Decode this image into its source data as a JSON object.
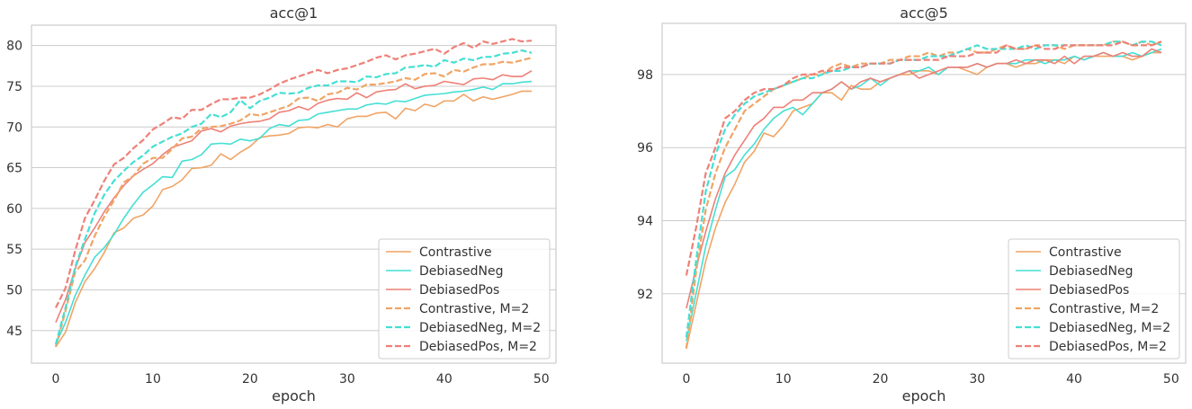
{
  "chart_data": [
    {
      "type": "line",
      "title": "acc@1",
      "xlabel": "epoch",
      "ylabel": "",
      "xlim": [
        -2.5,
        51.5
      ],
      "ylim": [
        41,
        82.5
      ],
      "xticks": [
        0,
        10,
        20,
        30,
        40,
        50
      ],
      "yticks": [
        45,
        50,
        55,
        60,
        65,
        70,
        75,
        80
      ],
      "grid": "horizontal",
      "legend": "lower-right",
      "series": [
        {
          "name": "Contrastive",
          "color": "#f0a465",
          "dash": false,
          "values": [
            43.0,
            44.8,
            48.4,
            51.0,
            52.6,
            54.6,
            57.0,
            57.6,
            58.8,
            59.2,
            60.3,
            62.3,
            62.7,
            63.5,
            64.9,
            65.0,
            65.3,
            66.7,
            66.0,
            66.9,
            67.6,
            68.7,
            68.9,
            69.0,
            69.2,
            69.9,
            70.0,
            69.9,
            70.3,
            70.0,
            71.0,
            71.3,
            71.3,
            71.7,
            71.8,
            71.0,
            72.3,
            72.0,
            72.8,
            72.5,
            73.2,
            73.2,
            74.0,
            73.2,
            73.7,
            73.4,
            73.7,
            74.0,
            74.4,
            74.4
          ]
        },
        {
          "name": "DebiasedNeg",
          "color": "#45dfd3",
          "dash": false,
          "values": [
            43.3,
            46.0,
            49.3,
            51.8,
            54.0,
            55.2,
            56.8,
            58.8,
            60.5,
            62.0,
            62.9,
            63.9,
            63.8,
            65.8,
            66.0,
            66.6,
            67.9,
            68.0,
            67.9,
            68.5,
            68.3,
            68.6,
            69.8,
            70.3,
            70.1,
            70.8,
            70.9,
            71.6,
            71.8,
            72.0,
            72.2,
            72.2,
            72.7,
            72.9,
            72.8,
            73.2,
            73.1,
            73.5,
            73.9,
            74.0,
            74.1,
            74.3,
            74.4,
            74.6,
            74.9,
            74.6,
            75.3,
            75.3,
            75.5,
            75.6
          ]
        },
        {
          "name": "DebiasedPos",
          "color": "#ee8077",
          "dash": false,
          "values": [
            46.0,
            48.8,
            52.6,
            55.8,
            57.6,
            59.6,
            61.3,
            62.8,
            64.0,
            64.8,
            65.5,
            66.6,
            67.5,
            67.9,
            68.3,
            69.5,
            69.8,
            69.4,
            70.1,
            70.4,
            70.6,
            70.7,
            71.0,
            71.8,
            72.0,
            72.5,
            72.1,
            72.9,
            73.3,
            73.5,
            73.4,
            74.2,
            73.6,
            74.3,
            74.5,
            74.6,
            75.3,
            74.7,
            75.0,
            75.1,
            75.6,
            75.4,
            75.2,
            75.9,
            76.0,
            75.8,
            76.4,
            76.2,
            76.2,
            76.9
          ]
        },
        {
          "name": "Contrastive, M=2",
          "color": "#f0a465",
          "dash": true,
          "values": [
            43.0,
            47.4,
            52.2,
            53.6,
            56.6,
            59.0,
            61.0,
            63.2,
            64.0,
            65.5,
            66.2,
            66.2,
            67.3,
            68.6,
            68.8,
            69.8,
            70.0,
            70.1,
            70.4,
            70.8,
            71.6,
            71.4,
            71.8,
            72.2,
            72.6,
            73.5,
            73.6,
            73.2,
            74.0,
            74.2,
            74.8,
            74.6,
            75.2,
            75.2,
            75.4,
            75.6,
            76.0,
            75.8,
            76.5,
            76.6,
            76.2,
            77.0,
            76.8,
            77.3,
            77.7,
            77.7,
            78.0,
            77.9,
            78.2,
            78.5
          ]
        },
        {
          "name": "DebiasedNeg, M=2",
          "color": "#45dfd3",
          "dash": true,
          "values": [
            43.3,
            47.8,
            52.8,
            56.2,
            59.4,
            61.7,
            63.4,
            64.6,
            65.7,
            66.5,
            67.6,
            68.2,
            68.8,
            69.2,
            70.0,
            70.4,
            71.6,
            71.2,
            71.8,
            73.3,
            72.3,
            73.2,
            73.6,
            74.2,
            74.1,
            74.2,
            74.8,
            75.1,
            75.1,
            75.6,
            75.6,
            75.5,
            76.2,
            76.1,
            76.5,
            76.6,
            77.3,
            77.4,
            77.6,
            77.4,
            78.2,
            77.9,
            78.4,
            78.2,
            78.6,
            78.6,
            79.0,
            79.1,
            79.4,
            79.1
          ]
        },
        {
          "name": "DebiasedPos, M=2",
          "color": "#ee8077",
          "dash": true,
          "values": [
            47.8,
            50.2,
            54.8,
            58.8,
            61.0,
            63.4,
            65.4,
            66.2,
            67.4,
            68.4,
            69.7,
            70.4,
            71.2,
            71.0,
            72.1,
            72.1,
            72.8,
            73.4,
            73.4,
            73.6,
            73.6,
            74.0,
            74.6,
            75.3,
            75.8,
            76.2,
            76.6,
            77.0,
            76.6,
            77.0,
            77.2,
            77.6,
            78.0,
            78.5,
            78.8,
            78.3,
            78.8,
            79.0,
            79.3,
            79.6,
            79.0,
            79.8,
            80.3,
            79.7,
            80.5,
            80.2,
            80.5,
            80.8,
            80.5,
            80.6
          ]
        }
      ]
    },
    {
      "type": "line",
      "title": "acc@5",
      "xlabel": "epoch",
      "ylabel": "",
      "xlim": [
        -2.5,
        51.5
      ],
      "ylim": [
        90.1,
        99.4
      ],
      "xticks": [
        0,
        10,
        20,
        30,
        40,
        50
      ],
      "yticks": [
        92,
        94,
        96,
        98
      ],
      "grid": "horizontal",
      "legend": "lower-right",
      "series": [
        {
          "name": "Contrastive",
          "color": "#f0a465",
          "dash": false,
          "values": [
            90.5,
            91.7,
            92.9,
            93.8,
            94.5,
            95.0,
            95.6,
            95.9,
            96.4,
            96.3,
            96.6,
            97.0,
            97.1,
            97.2,
            97.5,
            97.5,
            97.3,
            97.7,
            97.6,
            97.6,
            97.8,
            97.9,
            98.0,
            98.0,
            98.1,
            98.1,
            98.0,
            98.2,
            98.2,
            98.1,
            98.0,
            98.2,
            98.3,
            98.3,
            98.2,
            98.3,
            98.3,
            98.4,
            98.4,
            98.3,
            98.5,
            98.4,
            98.5,
            98.5,
            98.5,
            98.5,
            98.4,
            98.5,
            98.6,
            98.6
          ]
        },
        {
          "name": "DebiasedNeg",
          "color": "#45dfd3",
          "dash": false,
          "values": [
            90.7,
            92.0,
            93.3,
            94.3,
            95.2,
            95.4,
            95.8,
            96.1,
            96.5,
            96.8,
            97.0,
            97.1,
            96.9,
            97.2,
            97.5,
            97.6,
            97.8,
            97.6,
            97.7,
            97.9,
            97.7,
            97.9,
            98.0,
            98.1,
            98.1,
            98.2,
            98.0,
            98.2,
            98.2,
            98.2,
            98.3,
            98.2,
            98.3,
            98.3,
            98.3,
            98.4,
            98.4,
            98.3,
            98.4,
            98.4,
            98.5,
            98.4,
            98.5,
            98.6,
            98.5,
            98.5,
            98.6,
            98.5,
            98.6,
            98.7
          ]
        },
        {
          "name": "DebiasedPos",
          "color": "#ee8077",
          "dash": false,
          "values": [
            91.6,
            92.7,
            93.7,
            94.6,
            95.3,
            95.8,
            96.2,
            96.6,
            96.8,
            97.1,
            97.1,
            97.3,
            97.3,
            97.5,
            97.5,
            97.6,
            97.8,
            97.6,
            97.8,
            97.9,
            97.8,
            97.9,
            98.0,
            98.1,
            97.9,
            98.0,
            98.1,
            98.2,
            98.2,
            98.2,
            98.3,
            98.2,
            98.3,
            98.3,
            98.4,
            98.3,
            98.4,
            98.4,
            98.3,
            98.5,
            98.3,
            98.5,
            98.5,
            98.6,
            98.5,
            98.6,
            98.5,
            98.5,
            98.7,
            98.6
          ]
        },
        {
          "name": "Contrastive, M=2",
          "color": "#f0a465",
          "dash": true,
          "values": [
            90.5,
            92.6,
            94.3,
            95.3,
            96.0,
            96.5,
            97.0,
            97.2,
            97.4,
            97.6,
            97.7,
            97.8,
            97.9,
            98.0,
            98.0,
            98.2,
            98.3,
            98.2,
            98.3,
            98.3,
            98.3,
            98.4,
            98.4,
            98.5,
            98.5,
            98.6,
            98.5,
            98.6,
            98.6,
            98.7,
            98.6,
            98.6,
            98.7,
            98.8,
            98.7,
            98.7,
            98.8,
            98.8,
            98.8,
            98.7,
            98.8,
            98.8,
            98.8,
            98.8,
            98.9,
            98.9,
            98.8,
            98.9,
            98.8,
            98.9
          ]
        },
        {
          "name": "DebiasedNeg, M=2",
          "color": "#45dfd3",
          "dash": true,
          "values": [
            90.8,
            92.9,
            94.8,
            95.8,
            96.5,
            96.9,
            97.2,
            97.4,
            97.5,
            97.6,
            97.7,
            97.8,
            97.9,
            97.9,
            98.0,
            98.1,
            98.1,
            98.2,
            98.2,
            98.3,
            98.3,
            98.3,
            98.4,
            98.4,
            98.4,
            98.5,
            98.5,
            98.5,
            98.6,
            98.7,
            98.8,
            98.7,
            98.7,
            98.7,
            98.7,
            98.8,
            98.7,
            98.8,
            98.8,
            98.8,
            98.8,
            98.8,
            98.8,
            98.8,
            98.9,
            98.9,
            98.8,
            98.9,
            98.9,
            98.8
          ]
        },
        {
          "name": "DebiasedPos, M=2",
          "color": "#ee8077",
          "dash": true,
          "values": [
            92.5,
            93.8,
            95.3,
            96.0,
            96.8,
            97.0,
            97.3,
            97.5,
            97.6,
            97.6,
            97.7,
            97.9,
            98.0,
            98.0,
            98.1,
            98.1,
            98.2,
            98.2,
            98.2,
            98.3,
            98.3,
            98.3,
            98.4,
            98.4,
            98.4,
            98.4,
            98.4,
            98.5,
            98.5,
            98.5,
            98.6,
            98.6,
            98.6,
            98.8,
            98.7,
            98.7,
            98.8,
            98.7,
            98.7,
            98.8,
            98.8,
            98.8,
            98.8,
            98.8,
            98.8,
            98.9,
            98.8,
            98.8,
            98.8,
            98.9
          ]
        }
      ]
    }
  ]
}
